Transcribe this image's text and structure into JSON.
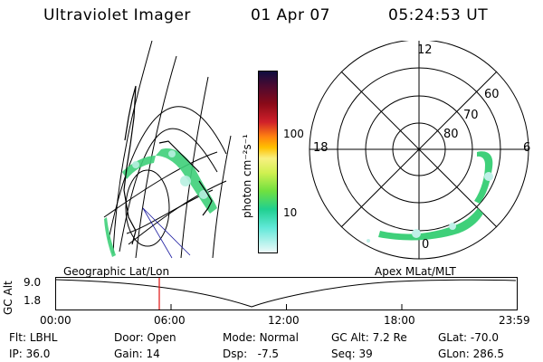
{
  "header": {
    "title": "Ultraviolet Imager",
    "date": "01 Apr 07",
    "time": "05:24:53 UT"
  },
  "colorbar": {
    "unit_label": "photon cm⁻²s⁻¹",
    "tick_labels": [
      "100",
      "10"
    ],
    "colors": [
      "#0d0d40",
      "#3a0a2a",
      "#6b0a1a",
      "#9a0a14",
      "#c8102a",
      "#e8403a",
      "#ff7a10",
      "#ffb000",
      "#f0e040",
      "#e8f060",
      "#c8f050",
      "#90e840",
      "#40d860",
      "#20d0a0",
      "#40e0d0",
      "#a0f0e8",
      "#e0f8f8"
    ]
  },
  "polar": {
    "mlt_labels": {
      "top": "12",
      "left": "18",
      "right": "6",
      "bottom": "0"
    },
    "lat_labels": [
      "60",
      "70",
      "80"
    ]
  },
  "timeline": {
    "left_label": "Geographic Lat/Lon",
    "right_label": "Apex MLat/MLT",
    "axis_label": "GC Alt",
    "y_ticks": [
      "9.0",
      "1.8"
    ],
    "x_ticks": [
      "00:00",
      "06:00",
      "12:00",
      "18:00",
      "23:59"
    ],
    "marker_time": "05:24:53"
  },
  "info": {
    "row1": [
      {
        "label": "Flt:",
        "value": "LBHL"
      },
      {
        "label": "Door:",
        "value": "Open"
      },
      {
        "label": "Mode:",
        "value": "Normal"
      },
      {
        "label": "GC Alt:",
        "value": "7.2 Re"
      },
      {
        "label": "GLat:",
        "value": "-70.0"
      }
    ],
    "row2": [
      {
        "label": "IP:",
        "value": "36.0"
      },
      {
        "label": "Gain:",
        "value": "14"
      },
      {
        "label": "Dsp:",
        "value": "-7.5"
      },
      {
        "label": "Seq:",
        "value": "39"
      },
      {
        "label": "GLon:",
        "value": "286.5"
      }
    ]
  }
}
